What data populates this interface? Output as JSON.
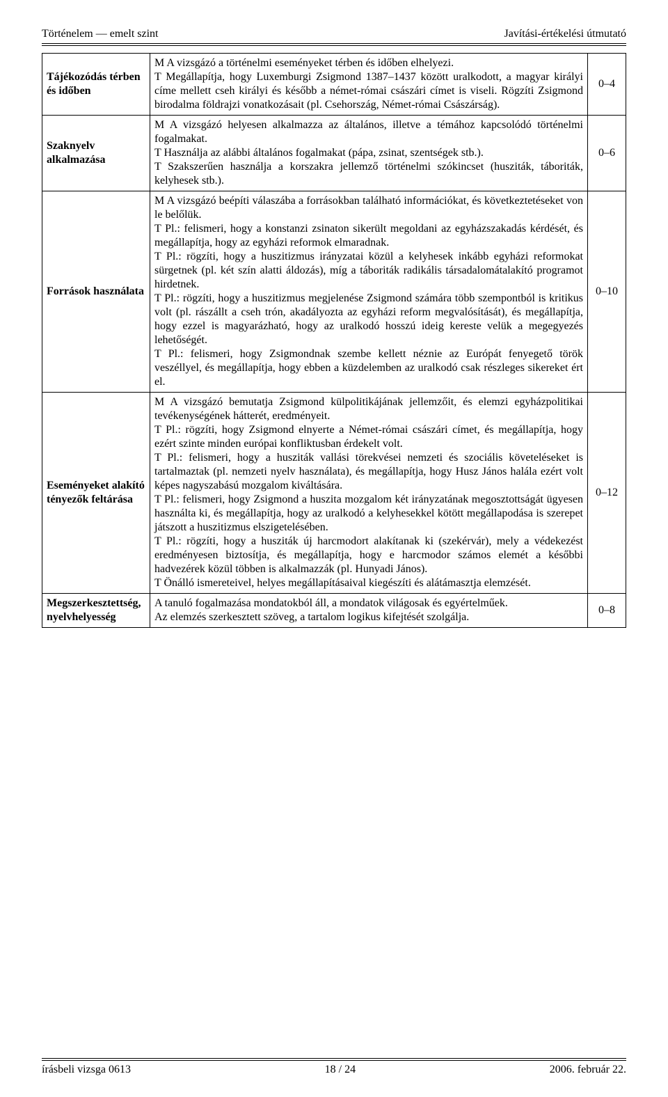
{
  "header": {
    "left": "Történelem — emelt szint",
    "right": "Javítási-értékelési útmutató"
  },
  "rows": [
    {
      "label": "Tájékozódás térben és időben",
      "content": "M A vizsgázó a történelmi eseményeket térben és időben elhelyezi.\nT Megállapítja, hogy Luxemburgi Zsigmond 1387–1437 között uralkodott, a magyar királyi címe mellett cseh királyi és később a német-római császári címet is viseli. Rögzíti Zsigmond birodalma földrajzi vonatkozásait (pl. Csehország, Német-római Császárság).",
      "score": "0–4"
    },
    {
      "label": "Szaknyelv alkalmazása",
      "content": "M A vizsgázó helyesen alkalmazza az általános, illetve a témához kapcsolódó történelmi fogalmakat.\nT Használja az alábbi általános fogalmakat (pápa, zsinat, szentségek stb.).\nT Szakszerűen használja a korszakra jellemző történelmi szókincset (husziták, táboriták, kelyhesek stb.).",
      "score": "0–6"
    },
    {
      "label": "Források használata",
      "content": "M A vizsgázó beépíti válaszába a forrásokban található információkat, és következtetéseket von le belőlük.\nT Pl.: felismeri, hogy a konstanzi zsinaton sikerült megoldani az egyházszakadás kérdését, és megállapítja, hogy az egyházi reformok elmaradnak.\nT Pl.: rögzíti, hogy a huszitizmus irányzatai közül a kelyhesek inkább egyházi reformokat sürgetnek (pl. két szín alatti áldozás), míg a táboriták radikális társadalomátalakító programot hirdetnek.\nT Pl.: rögzíti, hogy a huszitizmus megjelenése Zsigmond számára több szempontból is kritikus volt (pl. rászállt a cseh trón, akadályozta az egyházi reform megvalósítását), és megállapítja, hogy ezzel is magyarázható, hogy az uralkodó hosszú ideig kereste velük a megegyezés lehetőségét.\nT Pl.: felismeri, hogy Zsigmondnak szembe kellett néznie az Európát fenyegető török veszéllyel, és megállapítja, hogy ebben a küzdelemben az uralkodó csak részleges sikereket ért el.",
      "score": "0–10"
    },
    {
      "label": "Eseményeket alakító tényezők feltárása",
      "content": "M A vizsgázó bemutatja Zsigmond külpolitikájának jellemzőit, és elemzi egyházpolitikai tevékenységének hátterét, eredményeit.\nT Pl.: rögzíti, hogy Zsigmond elnyerte a Német-római császári címet, és megállapítja, hogy ezért szinte minden európai konfliktusban érdekelt volt.\nT Pl.: felismeri, hogy a husziták vallási törekvései nemzeti és szociális követeléseket is tartalmaztak (pl. nemzeti nyelv használata), és megállapítja, hogy Husz János halála ezért volt képes nagyszabású mozgalom kiváltására.\nT Pl.: felismeri, hogy Zsigmond a huszita mozgalom két irányzatának megosztottságát ügyesen használta ki, és megállapítja, hogy az uralkodó a kelyhesekkel kötött megállapodása is szerepet játszott a huszitizmus elszigetelésében.\nT Pl.: rögzíti, hogy a husziták új harcmodort alakítanak ki (szekérvár), mely a védekezést eredményesen biztosítja, és megállapítja, hogy e harcmodor számos elemét a későbbi hadvezérek közül többen is alkalmazzák (pl. Hunyadi János).\nT Önálló ismereteivel, helyes megállapításaival kiegészíti és alátámasztja elemzését.",
      "score": "0–12"
    },
    {
      "label": "Megszerkesztettség, nyelvhelyesség",
      "content": "A tanuló fogalmazása mondatokból áll, a mondatok világosak és egyértelműek.\nAz elemzés szerkesztett szöveg, a tartalom logikus kifejtését szolgálja.",
      "score": "0–8"
    }
  ],
  "footer": {
    "left": "írásbeli vizsga 0613",
    "center": "18 / 24",
    "right": "2006. február 22."
  }
}
